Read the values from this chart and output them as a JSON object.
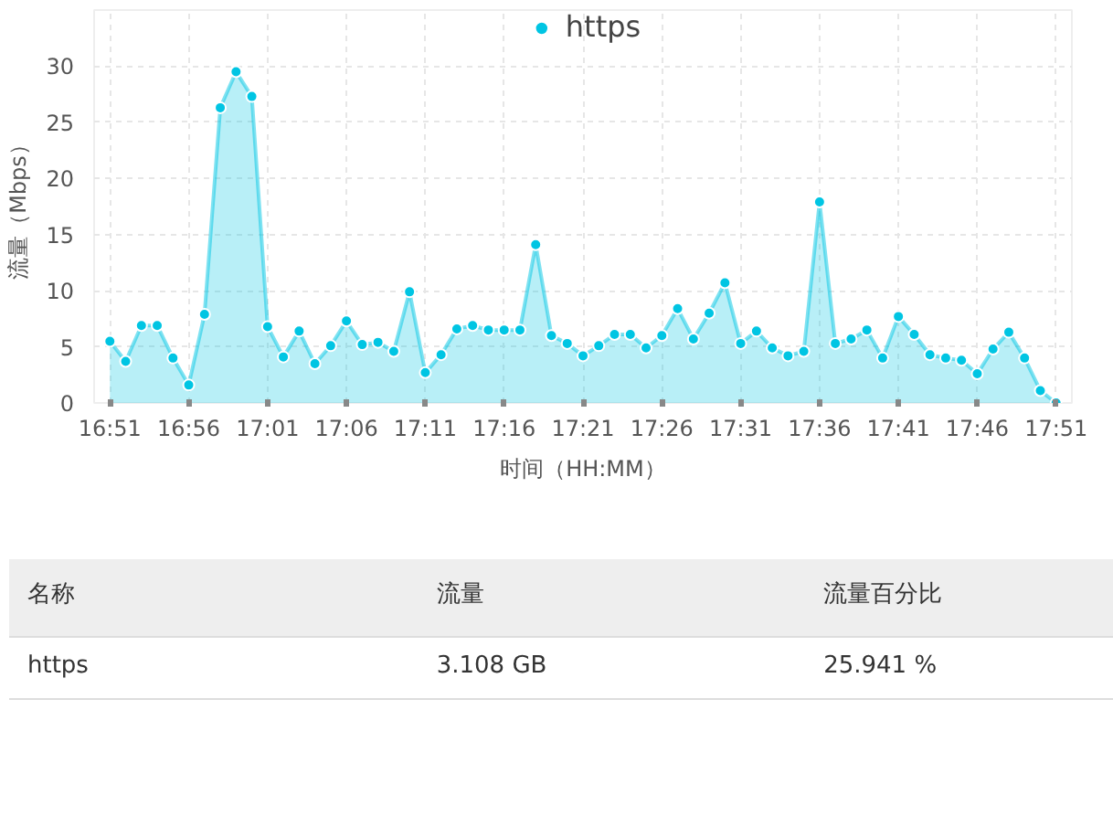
{
  "chart_data": {
    "type": "area",
    "xlabel": "时间（HH:MM）",
    "ylabel": "流量（Mbps）",
    "categories": [
      "16:51",
      null,
      null,
      null,
      null,
      "16:56",
      null,
      null,
      null,
      null,
      "17:01",
      null,
      null,
      null,
      null,
      "17:06",
      null,
      null,
      null,
      null,
      "17:11",
      null,
      null,
      null,
      null,
      "17:16",
      null,
      null,
      null,
      null,
      "17:21",
      null,
      null,
      null,
      null,
      "17:26",
      null,
      null,
      null,
      null,
      "17:31",
      null,
      null,
      null,
      null,
      "17:36",
      null,
      null,
      null,
      null,
      "17:41",
      null,
      null,
      null,
      null,
      "17:46",
      null,
      null,
      null,
      null,
      "17:51"
    ],
    "series": [
      {
        "name": "https",
        "color": "#00c5e3",
        "values": [
          5.5,
          3.7,
          6.9,
          6.9,
          4.0,
          1.6,
          7.9,
          26.3,
          29.5,
          27.3,
          6.8,
          4.1,
          6.4,
          3.5,
          5.1,
          7.3,
          5.2,
          5.4,
          4.6,
          9.9,
          2.7,
          4.3,
          6.6,
          6.9,
          6.5,
          6.5,
          6.5,
          14.1,
          6.0,
          5.3,
          4.2,
          5.1,
          6.1,
          6.1,
          4.9,
          6.0,
          8.4,
          5.7,
          8.0,
          10.7,
          5.3,
          6.4,
          4.9,
          4.2,
          4.6,
          17.9,
          5.3,
          5.7,
          6.5,
          4.0,
          7.7,
          6.1,
          4.3,
          4.0,
          3.8,
          2.6,
          4.8,
          6.3,
          4.0,
          1.1,
          0
        ]
      }
    ],
    "ylim": [
      0,
      35
    ],
    "yticks": [
      0,
      5,
      10,
      15,
      20,
      25,
      30
    ],
    "grid": true,
    "legend": "top",
    "marker": "circle",
    "annotations": [
      "名称",
      "流量",
      "流量百分比",
      "https",
      "3.108 GB",
      "25.941 %"
    ]
  }
}
